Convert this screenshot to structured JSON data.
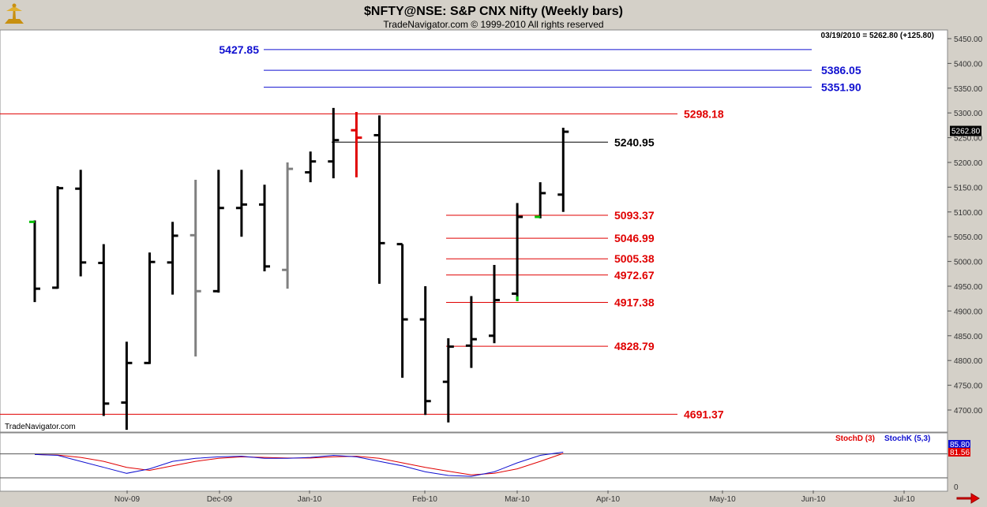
{
  "header": {
    "title": "$NFTY@NSE:  S&P CNX Nifty  (Weekly bars)",
    "subtitle": "TradeNavigator.com © 1999-2010 All rights reserved",
    "last_quote": "03/19/2010 = 5262.80 (+125.80)",
    "watermark": "TradeNavigator.com"
  },
  "colors": {
    "bull": "#000000",
    "neutral": "#808080",
    "alert": "#e00000",
    "resistance_blue": "#1010d0",
    "support_red": "#e00000"
  },
  "chart_data": {
    "type": "ohlc",
    "ylim": [
      4660,
      5475
    ],
    "y_ticks": [
      4700,
      4750,
      4800,
      4850,
      4900,
      4950,
      5000,
      5050,
      5100,
      5150,
      5200,
      5250,
      5300,
      5350,
      5400,
      5450
    ],
    "last_price_label": "5262.80",
    "x_labels": [
      "Nov-09",
      "Dec-09",
      "Jan-10",
      "Feb-10",
      "Mar-10",
      "Apr-10",
      "May-10",
      "Jun-10",
      "Jul-10"
    ],
    "bars": [
      {
        "o": 5080,
        "h": 5083,
        "l": 4918,
        "c": 4945,
        "color": "black",
        "openColor": "#00c000"
      },
      {
        "o": 4947,
        "h": 5152,
        "l": 4945,
        "c": 5148,
        "color": "black"
      },
      {
        "o": 5147,
        "h": 5185,
        "l": 4970,
        "c": 4998,
        "color": "black"
      },
      {
        "o": 4997,
        "h": 5035,
        "l": 4688,
        "c": 4713,
        "color": "black"
      },
      {
        "o": 4715,
        "h": 4838,
        "l": 4660,
        "c": 4795,
        "color": "black"
      },
      {
        "o": 4795,
        "h": 5018,
        "l": 4793,
        "c": 4999,
        "color": "black"
      },
      {
        "o": 4998,
        "h": 5080,
        "l": 4933,
        "c": 5052,
        "color": "black"
      },
      {
        "o": 5053,
        "h": 5165,
        "l": 4808,
        "c": 4940,
        "color": "gray"
      },
      {
        "o": 4940,
        "h": 5185,
        "l": 4937,
        "c": 5108,
        "color": "black"
      },
      {
        "o": 5108,
        "h": 5185,
        "l": 5050,
        "c": 5115,
        "color": "black"
      },
      {
        "o": 5115,
        "h": 5155,
        "l": 4980,
        "c": 4990,
        "color": "black"
      },
      {
        "o": 4983,
        "h": 5200,
        "l": 4945,
        "c": 5187,
        "color": "gray"
      },
      {
        "o": 5180,
        "h": 5222,
        "l": 5160,
        "c": 5202,
        "color": "black"
      },
      {
        "o": 5202,
        "h": 5310,
        "l": 5168,
        "c": 5245,
        "color": "black"
      },
      {
        "o": 5265,
        "h": 5302,
        "l": 5170,
        "c": 5250,
        "color": "red"
      },
      {
        "o": 5255,
        "h": 5295,
        "l": 4955,
        "c": 5037,
        "color": "black"
      },
      {
        "o": 5035,
        "h": 5035,
        "l": 4765,
        "c": 4883,
        "color": "black"
      },
      {
        "o": 4883,
        "h": 4950,
        "l": 4690,
        "c": 4718,
        "color": "black"
      },
      {
        "o": 4757,
        "h": 4845,
        "l": 4675,
        "c": 4828,
        "color": "black"
      },
      {
        "o": 4830,
        "h": 4930,
        "l": 4785,
        "c": 4843,
        "color": "black"
      },
      {
        "o": 4850,
        "h": 4993,
        "l": 4835,
        "c": 4922,
        "color": "black"
      },
      {
        "o": 4935,
        "h": 5118,
        "l": 4920,
        "c": 5090,
        "color": "black",
        "lowColor": "#00c000"
      },
      {
        "o": 5090,
        "h": 5160,
        "l": 5087,
        "c": 5138,
        "color": "black",
        "openColor": "#00c000"
      },
      {
        "o": 5135,
        "h": 5270,
        "l": 5100,
        "c": 5262,
        "color": "black"
      }
    ],
    "levels": [
      {
        "value": 5427.85,
        "label": "5427.85",
        "color": "blue",
        "x_start": "Dec-09",
        "label_side": "left"
      },
      {
        "value": 5386.05,
        "label": "5386.05",
        "color": "blue",
        "x_start": "Dec-09",
        "label_side": "right"
      },
      {
        "value": 5351.9,
        "label": "5351.90",
        "color": "blue",
        "x_start": "Dec-09",
        "label_side": "right"
      },
      {
        "value": 5298.18,
        "label": "5298.18",
        "color": "red",
        "x_start": "start",
        "label_side": "far"
      },
      {
        "value": 5240.95,
        "label": "5240.95",
        "color": "black",
        "x_start": "Jan-10",
        "label_side": "near"
      },
      {
        "value": 5093.37,
        "label": "5093.37",
        "color": "red",
        "x_start": "Feb-10",
        "label_side": "near"
      },
      {
        "value": 5046.99,
        "label": "5046.99",
        "color": "red",
        "x_start": "Feb-10",
        "label_side": "near"
      },
      {
        "value": 5005.38,
        "label": "5005.38",
        "color": "red",
        "x_start": "Feb-10",
        "label_side": "near"
      },
      {
        "value": 4972.67,
        "label": "4972.67",
        "color": "red",
        "x_start": "Feb-10",
        "label_side": "near"
      },
      {
        "value": 4917.38,
        "label": "4917.38",
        "color": "red",
        "x_start": "Feb-10",
        "label_side": "near"
      },
      {
        "value": 4828.79,
        "label": "4828.79",
        "color": "red",
        "x_start": "Feb-10",
        "label_side": "near"
      },
      {
        "value": 4691.37,
        "label": "4691.37",
        "color": "red",
        "x_start": "start",
        "label_side": "far"
      }
    ],
    "stochastic": {
      "legend_d": "StochD (3)",
      "legend_k": "StochK (5,3)",
      "value_k": "85.80",
      "value_d": "81.56",
      "zero_label": "0",
      "ylim": [
        0,
        100
      ],
      "stoch_k": [
        78,
        75,
        55,
        35,
        15,
        30,
        55,
        65,
        70,
        72,
        65,
        65,
        68,
        75,
        70,
        55,
        40,
        20,
        8,
        5,
        20,
        50,
        75,
        85.8
      ],
      "stoch_d": [
        78,
        76,
        68,
        55,
        35,
        25,
        40,
        55,
        65,
        70,
        68,
        66,
        66,
        70,
        72,
        65,
        50,
        35,
        22,
        10,
        15,
        30,
        55,
        81.56
      ]
    }
  }
}
